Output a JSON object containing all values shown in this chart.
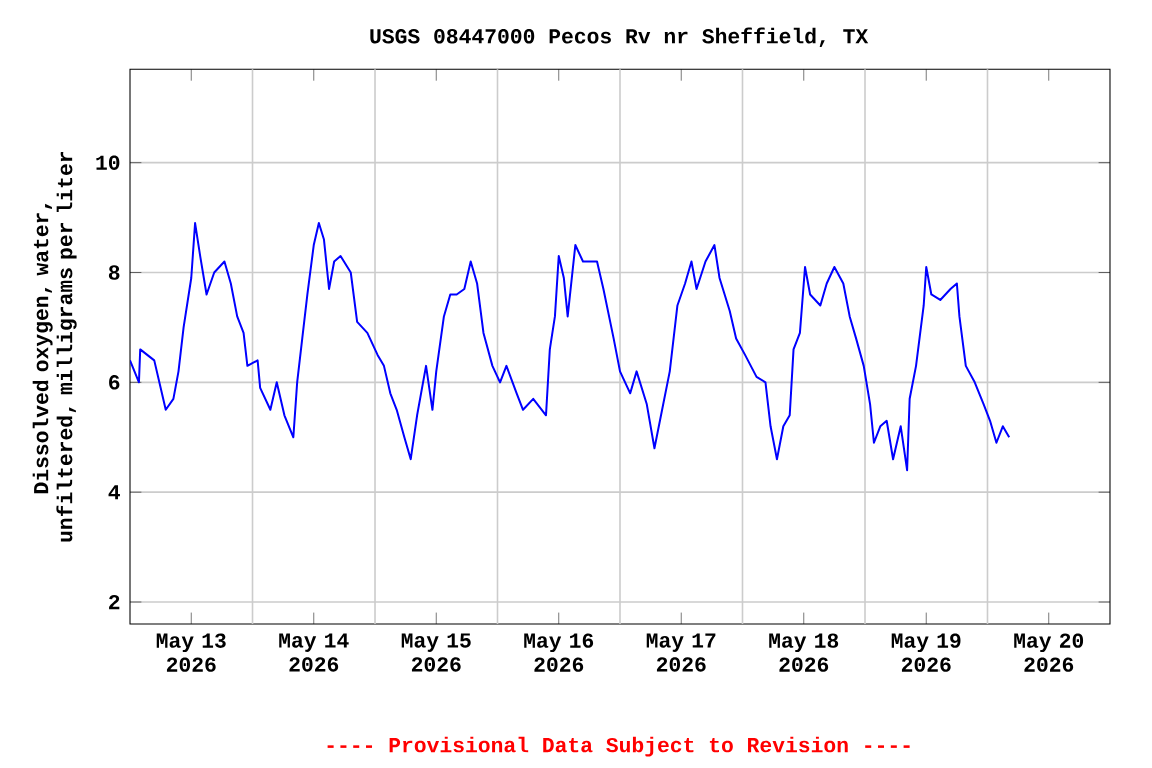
{
  "chart_data": {
    "type": "line",
    "title": "USGS 08447000 Pecos Rv nr Sheffield, TX",
    "ylabel": "Dissolved oxygen, water, unfiltered, milligrams per liter",
    "annotations": [
      "---- Provisional Data Subject to Revision ----"
    ],
    "xlim": [
      "2026-05-13T00:00",
      "2026-05-21T00:00"
    ],
    "xticks": [
      {
        "value": "2026-05-13T12:00",
        "label": "May 13 2026"
      },
      {
        "value": "2026-05-14T12:00",
        "label": "May 14 2026"
      },
      {
        "value": "2026-05-15T12:00",
        "label": "May 15 2026"
      },
      {
        "value": "2026-05-16T12:00",
        "label": "May 16 2026"
      },
      {
        "value": "2026-05-17T12:00",
        "label": "May 17 2026"
      },
      {
        "value": "2026-05-18T12:00",
        "label": "May 18 2026"
      },
      {
        "value": "2026-05-19T12:00",
        "label": "May 19 2026"
      },
      {
        "value": "2026-05-20T12:00",
        "label": "May 20 2026"
      },
      {
        "value": "2026-05-14T00:00",
        "label": null
      },
      {
        "value": "2026-05-15T00:00",
        "label": null
      },
      {
        "value": "2026-05-16T00:00",
        "label": null
      },
      {
        "value": "2026-05-17T00:00",
        "label": null
      },
      {
        "value": "2026-05-18T00:00",
        "label": null
      },
      {
        "value": "2026-05-19T00:00",
        "label": null
      },
      {
        "value": "2026-05-20T00:00",
        "label": null
      }
    ],
    "ylim": [
      1.6,
      11.7
    ],
    "yticks": [
      2,
      4,
      6,
      8,
      10
    ],
    "grid": true,
    "line_style": "solid",
    "series": [
      {
        "color": "#0000ff",
        "x": [
          "2026-05-13T00:00",
          "2026-05-13T01:45",
          "2026-05-13T02:00",
          "2026-05-13T04:45",
          "2026-05-13T06:00",
          "2026-05-13T07:00",
          "2026-05-13T08:30",
          "2026-05-13T09:30",
          "2026-05-13T10:30",
          "2026-05-13T12:00",
          "2026-05-13T12:45",
          "2026-05-13T13:45",
          "2026-05-13T15:00",
          "2026-05-13T16:30",
          "2026-05-13T18:30",
          "2026-05-13T19:45",
          "2026-05-13T21:00",
          "2026-05-13T22:15",
          "2026-05-13T23:00",
          "2026-05-14T01:00",
          "2026-05-14T01:30",
          "2026-05-14T03:30",
          "2026-05-14T04:45",
          "2026-05-14T06:15",
          "2026-05-14T08:00",
          "2026-05-14T08:45",
          "2026-05-14T09:45",
          "2026-05-14T10:45",
          "2026-05-14T12:00",
          "2026-05-14T13:00",
          "2026-05-14T14:00",
          "2026-05-14T15:00",
          "2026-05-14T16:00",
          "2026-05-14T17:15",
          "2026-05-14T19:15",
          "2026-05-14T20:30",
          "2026-05-14T22:30",
          "2026-05-15T00:30",
          "2026-05-15T01:45",
          "2026-05-15T03:00",
          "2026-05-15T04:15",
          "2026-05-15T05:45",
          "2026-05-15T07:00",
          "2026-05-15T08:15",
          "2026-05-15T10:00",
          "2026-05-15T11:15",
          "2026-05-15T12:00",
          "2026-05-15T13:30",
          "2026-05-15T14:45",
          "2026-05-15T16:00",
          "2026-05-15T17:30",
          "2026-05-15T18:45",
          "2026-05-15T20:00",
          "2026-05-15T21:15",
          "2026-05-15T23:00",
          "2026-05-16T00:30",
          "2026-05-16T01:45",
          "2026-05-16T03:45",
          "2026-05-16T05:00",
          "2026-05-16T07:00",
          "2026-05-16T09:30",
          "2026-05-16T10:15",
          "2026-05-16T11:15",
          "2026-05-16T12:00",
          "2026-05-16T13:00",
          "2026-05-16T13:45",
          "2026-05-16T15:15",
          "2026-05-16T16:45",
          "2026-05-16T19:30",
          "2026-05-16T20:45",
          "2026-05-16T22:45",
          "2026-05-17T00:00",
          "2026-05-17T02:00",
          "2026-05-17T03:15",
          "2026-05-17T05:15",
          "2026-05-17T06:45",
          "2026-05-17T08:15",
          "2026-05-17T09:45",
          "2026-05-17T11:15",
          "2026-05-17T12:45",
          "2026-05-17T14:00",
          "2026-05-17T15:00",
          "2026-05-17T16:45",
          "2026-05-17T18:30",
          "2026-05-17T19:30",
          "2026-05-17T21:30",
          "2026-05-17T22:45",
          "2026-05-18T00:30",
          "2026-05-18T02:45",
          "2026-05-18T04:30",
          "2026-05-18T05:30",
          "2026-05-18T06:45",
          "2026-05-18T08:00",
          "2026-05-18T09:15",
          "2026-05-18T10:00",
          "2026-05-18T11:15",
          "2026-05-18T12:15",
          "2026-05-18T13:15",
          "2026-05-18T15:15",
          "2026-05-18T16:30",
          "2026-05-18T18:00",
          "2026-05-18T19:45",
          "2026-05-18T21:00",
          "2026-05-18T22:15",
          "2026-05-18T23:45",
          "2026-05-19T01:00",
          "2026-05-19T01:45",
          "2026-05-19T03:00",
          "2026-05-19T04:15",
          "2026-05-19T05:30",
          "2026-05-19T07:00",
          "2026-05-19T08:15",
          "2026-05-19T08:45",
          "2026-05-19T10:00",
          "2026-05-19T11:30",
          "2026-05-19T12:00",
          "2026-05-19T13:00",
          "2026-05-19T14:45",
          "2026-05-19T16:45",
          "2026-05-19T18:00",
          "2026-05-19T18:30",
          "2026-05-19T19:45",
          "2026-05-19T21:30",
          "2026-05-19T23:15",
          "2026-05-20T00:30",
          "2026-05-20T01:45",
          "2026-05-20T03:00",
          "2026-05-20T04:15"
        ],
        "values": [
          6.4,
          6.0,
          6.6,
          6.4,
          5.9,
          5.5,
          5.7,
          6.2,
          7.0,
          7.9,
          8.9,
          8.3,
          7.6,
          8.0,
          8.2,
          7.8,
          7.2,
          6.9,
          6.3,
          6.4,
          5.9,
          5.5,
          6.0,
          5.4,
          5.0,
          6.0,
          6.8,
          7.6,
          8.5,
          8.9,
          8.6,
          7.7,
          8.2,
          8.3,
          8.0,
          7.1,
          6.9,
          6.5,
          6.3,
          5.8,
          5.5,
          5.0,
          4.6,
          5.4,
          6.3,
          5.5,
          6.2,
          7.2,
          7.6,
          7.6,
          7.7,
          8.2,
          7.8,
          6.9,
          6.3,
          6.0,
          6.3,
          5.8,
          5.5,
          5.7,
          5.4,
          6.6,
          7.2,
          8.3,
          7.9,
          7.2,
          8.5,
          8.2,
          8.2,
          7.7,
          6.8,
          6.2,
          5.8,
          6.2,
          5.6,
          4.8,
          5.5,
          6.2,
          7.4,
          7.8,
          8.2,
          7.7,
          8.2,
          8.5,
          7.9,
          7.3,
          6.8,
          6.5,
          6.1,
          6.0,
          5.2,
          4.6,
          5.2,
          5.4,
          6.6,
          6.9,
          8.1,
          7.6,
          7.4,
          7.8,
          8.1,
          7.8,
          7.2,
          6.8,
          6.3,
          5.6,
          4.9,
          5.2,
          5.3,
          4.6,
          5.2,
          4.4,
          5.7,
          6.3,
          7.4,
          8.1,
          7.6,
          7.5,
          7.7,
          7.8,
          7.2,
          6.3,
          6.0,
          5.6,
          5.3,
          4.9,
          5.2,
          5.0
        ]
      }
    ]
  }
}
